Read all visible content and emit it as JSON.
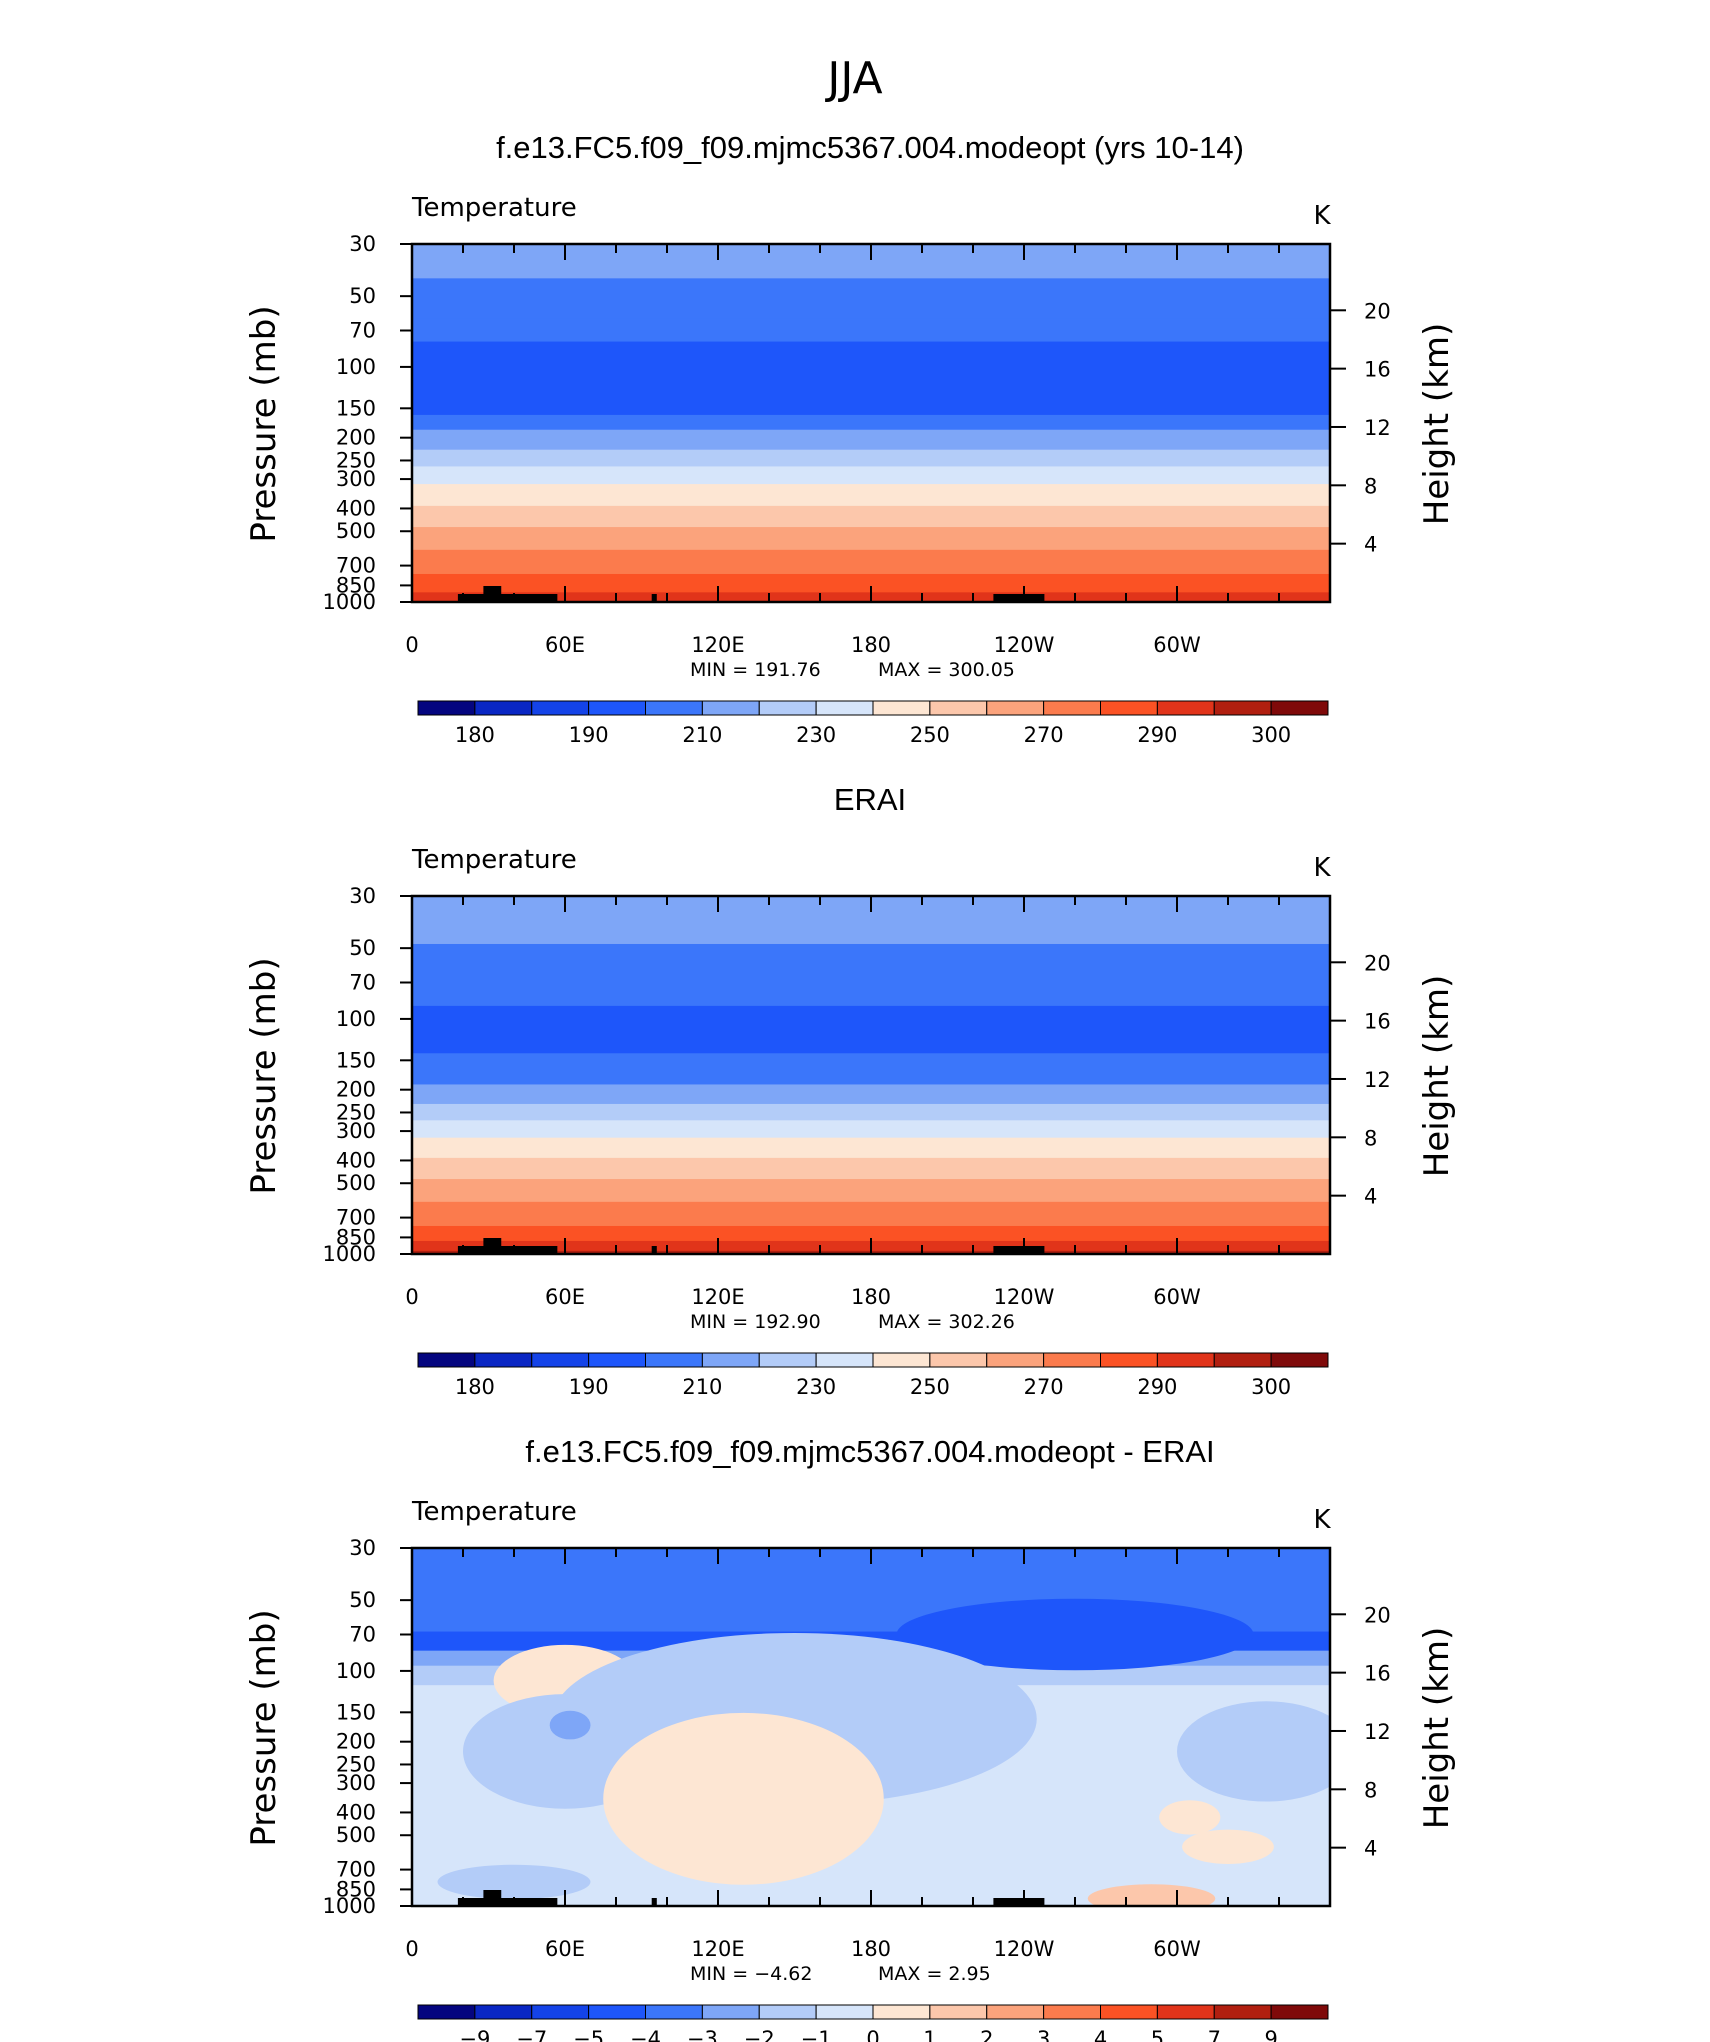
{
  "figure": {
    "title": "JJA"
  },
  "chart_data": [
    {
      "type": "heatmap",
      "title": "f.e13.FC5.f09_f09.mjmc5367.004.modeopt (yrs 10-14)",
      "variable": "Temperature",
      "units": "K",
      "ylabel": "Pressure (mb)",
      "y2label": "Height (km)",
      "x_tick_labels": [
        "0",
        "60E",
        "120E",
        "180",
        "120W",
        "60W"
      ],
      "y_tick_labels": [
        "30",
        "50",
        "70",
        "100",
        "150",
        "200",
        "250",
        "300",
        "400",
        "500",
        "700",
        "850",
        "1000"
      ],
      "y2_tick_labels": [
        "20",
        "16",
        "12",
        "8",
        "4"
      ],
      "ylim": [
        1000,
        30
      ],
      "ylog": true,
      "xlim": [
        0,
        360
      ],
      "min_label": "MIN  =  191.76",
      "max_label": "MAX  =  300.05",
      "colorbar_labels": [
        "180",
        "190",
        "210",
        "230",
        "250",
        "270",
        "290",
        "300"
      ],
      "colors": [
        "#04057f",
        "#0a27c4",
        "#1443e8",
        "#1e56fa",
        "#3b76fa",
        "#7ea6f7",
        "#b3ccf8",
        "#d6e5fa",
        "#fde6d3",
        "#fcc7ab",
        "#fba37c",
        "#fb7b4d",
        "#fb5224",
        "#e1341a",
        "#b11f10",
        "#7f0a0a"
      ],
      "bands": [
        {
          "p": 30,
          "level": 5
        },
        {
          "p": 42,
          "level": 4
        },
        {
          "p": 62,
          "level": 4
        },
        {
          "p": 78,
          "level": 3
        },
        {
          "p": 135,
          "level": 3
        },
        {
          "p": 160,
          "level": 4
        },
        {
          "p": 185,
          "level": 5
        },
        {
          "p": 225,
          "level": 6
        },
        {
          "p": 265,
          "level": 7
        },
        {
          "p": 315,
          "level": 8
        },
        {
          "p": 390,
          "level": 9
        },
        {
          "p": 480,
          "level": 10
        },
        {
          "p": 600,
          "level": 11
        },
        {
          "p": 760,
          "level": 12
        },
        {
          "p": 910,
          "level": 13
        },
        {
          "p": 1000,
          "level": 13
        }
      ]
    },
    {
      "type": "heatmap",
      "title": "ERAI",
      "variable": "Temperature",
      "units": "K",
      "ylabel": "Pressure (mb)",
      "y2label": "Height (km)",
      "x_tick_labels": [
        "0",
        "60E",
        "120E",
        "180",
        "120W",
        "60W"
      ],
      "y_tick_labels": [
        "30",
        "50",
        "70",
        "100",
        "150",
        "200",
        "250",
        "300",
        "400",
        "500",
        "700",
        "850",
        "1000"
      ],
      "y2_tick_labels": [
        "20",
        "16",
        "12",
        "8",
        "4"
      ],
      "ylim": [
        1000,
        30
      ],
      "ylog": true,
      "xlim": [
        0,
        360
      ],
      "min_label": "MIN  =  192.90",
      "max_label": "MAX  =  302.26",
      "colorbar_labels": [
        "180",
        "190",
        "210",
        "230",
        "250",
        "270",
        "290",
        "300"
      ],
      "colors": [
        "#04057f",
        "#0a27c4",
        "#1443e8",
        "#1e56fa",
        "#3b76fa",
        "#7ea6f7",
        "#b3ccf8",
        "#d6e5fa",
        "#fde6d3",
        "#fcc7ab",
        "#fba37c",
        "#fb7b4d",
        "#fb5224",
        "#e1341a",
        "#b11f10",
        "#7f0a0a"
      ],
      "bands": [
        {
          "p": 30,
          "level": 5
        },
        {
          "p": 48,
          "level": 4
        },
        {
          "p": 88,
          "level": 3
        },
        {
          "p": 140,
          "level": 4
        },
        {
          "p": 190,
          "level": 5
        },
        {
          "p": 230,
          "level": 6
        },
        {
          "p": 270,
          "level": 7
        },
        {
          "p": 320,
          "level": 8
        },
        {
          "p": 390,
          "level": 9
        },
        {
          "p": 480,
          "level": 10
        },
        {
          "p": 600,
          "level": 11
        },
        {
          "p": 760,
          "level": 12
        },
        {
          "p": 880,
          "level": 13
        },
        {
          "p": 970,
          "level": 14
        }
      ]
    },
    {
      "type": "heatmap",
      "title": "f.e13.FC5.f09_f09.mjmc5367.004.modeopt - ERAI",
      "variable": "Temperature",
      "units": "K",
      "ylabel": "Pressure (mb)",
      "y2label": "Height (km)",
      "x_tick_labels": [
        "0",
        "60E",
        "120E",
        "180",
        "120W",
        "60W"
      ],
      "y_tick_labels": [
        "30",
        "50",
        "70",
        "100",
        "150",
        "200",
        "250",
        "300",
        "400",
        "500",
        "700",
        "850",
        "1000"
      ],
      "y2_tick_labels": [
        "20",
        "16",
        "12",
        "8",
        "4"
      ],
      "ylim": [
        1000,
        30
      ],
      "ylog": true,
      "xlim": [
        0,
        360
      ],
      "min_label": "MIN  =    −4.62",
      "max_label": "MAX  =      2.95",
      "colorbar_labels": [
        "−9",
        "−7",
        "−5",
        "−4",
        "−3",
        "−2",
        "−1",
        "0",
        "1",
        "2",
        "3",
        "4",
        "5",
        "7",
        "9"
      ],
      "colors": [
        "#04057f",
        "#0a27c4",
        "#1443e8",
        "#1e56fa",
        "#3b76fa",
        "#7ea6f7",
        "#b3ccf8",
        "#d6e5fa",
        "#fde6d3",
        "#fcc7ab",
        "#fba37c",
        "#fb7b4d",
        "#fb5224",
        "#e1341a",
        "#b11f10",
        "#7f0a0a"
      ],
      "bands": [
        {
          "p": 30,
          "level": 4
        },
        {
          "p": 68,
          "level": 3
        },
        {
          "p": 82,
          "level": 5
        },
        {
          "p": 95,
          "level": 6
        },
        {
          "p": 115,
          "level": 7
        }
      ],
      "blobs": [
        {
          "lon": 260,
          "p": 70,
          "dlon": 70,
          "dp_frac": 0.025,
          "level": 3
        },
        {
          "lon": 60,
          "p": 110,
          "dlon": 28,
          "dp_frac": 0.025,
          "level": 8
        },
        {
          "lon": 150,
          "p": 160,
          "dlon": 95,
          "dp_frac": 0.06,
          "level": 6
        },
        {
          "lon": 60,
          "p": 220,
          "dlon": 40,
          "dp_frac": 0.04,
          "level": 6
        },
        {
          "lon": 335,
          "p": 220,
          "dlon": 35,
          "dp_frac": 0.035,
          "level": 6
        },
        {
          "lon": 62,
          "p": 170,
          "dlon": 8,
          "dp_frac": 0.01,
          "level": 5
        },
        {
          "lon": 130,
          "p": 350,
          "dlon": 55,
          "dp_frac": 0.06,
          "level": 8
        },
        {
          "lon": 305,
          "p": 420,
          "dlon": 12,
          "dp_frac": 0.012,
          "level": 8
        },
        {
          "lon": 320,
          "p": 560,
          "dlon": 18,
          "dp_frac": 0.012,
          "level": 8
        },
        {
          "lon": 40,
          "p": 790,
          "dlon": 30,
          "dp_frac": 0.012,
          "level": 6
        },
        {
          "lon": 290,
          "p": 930,
          "dlon": 25,
          "dp_frac": 0.01,
          "level": 9
        }
      ]
    }
  ]
}
